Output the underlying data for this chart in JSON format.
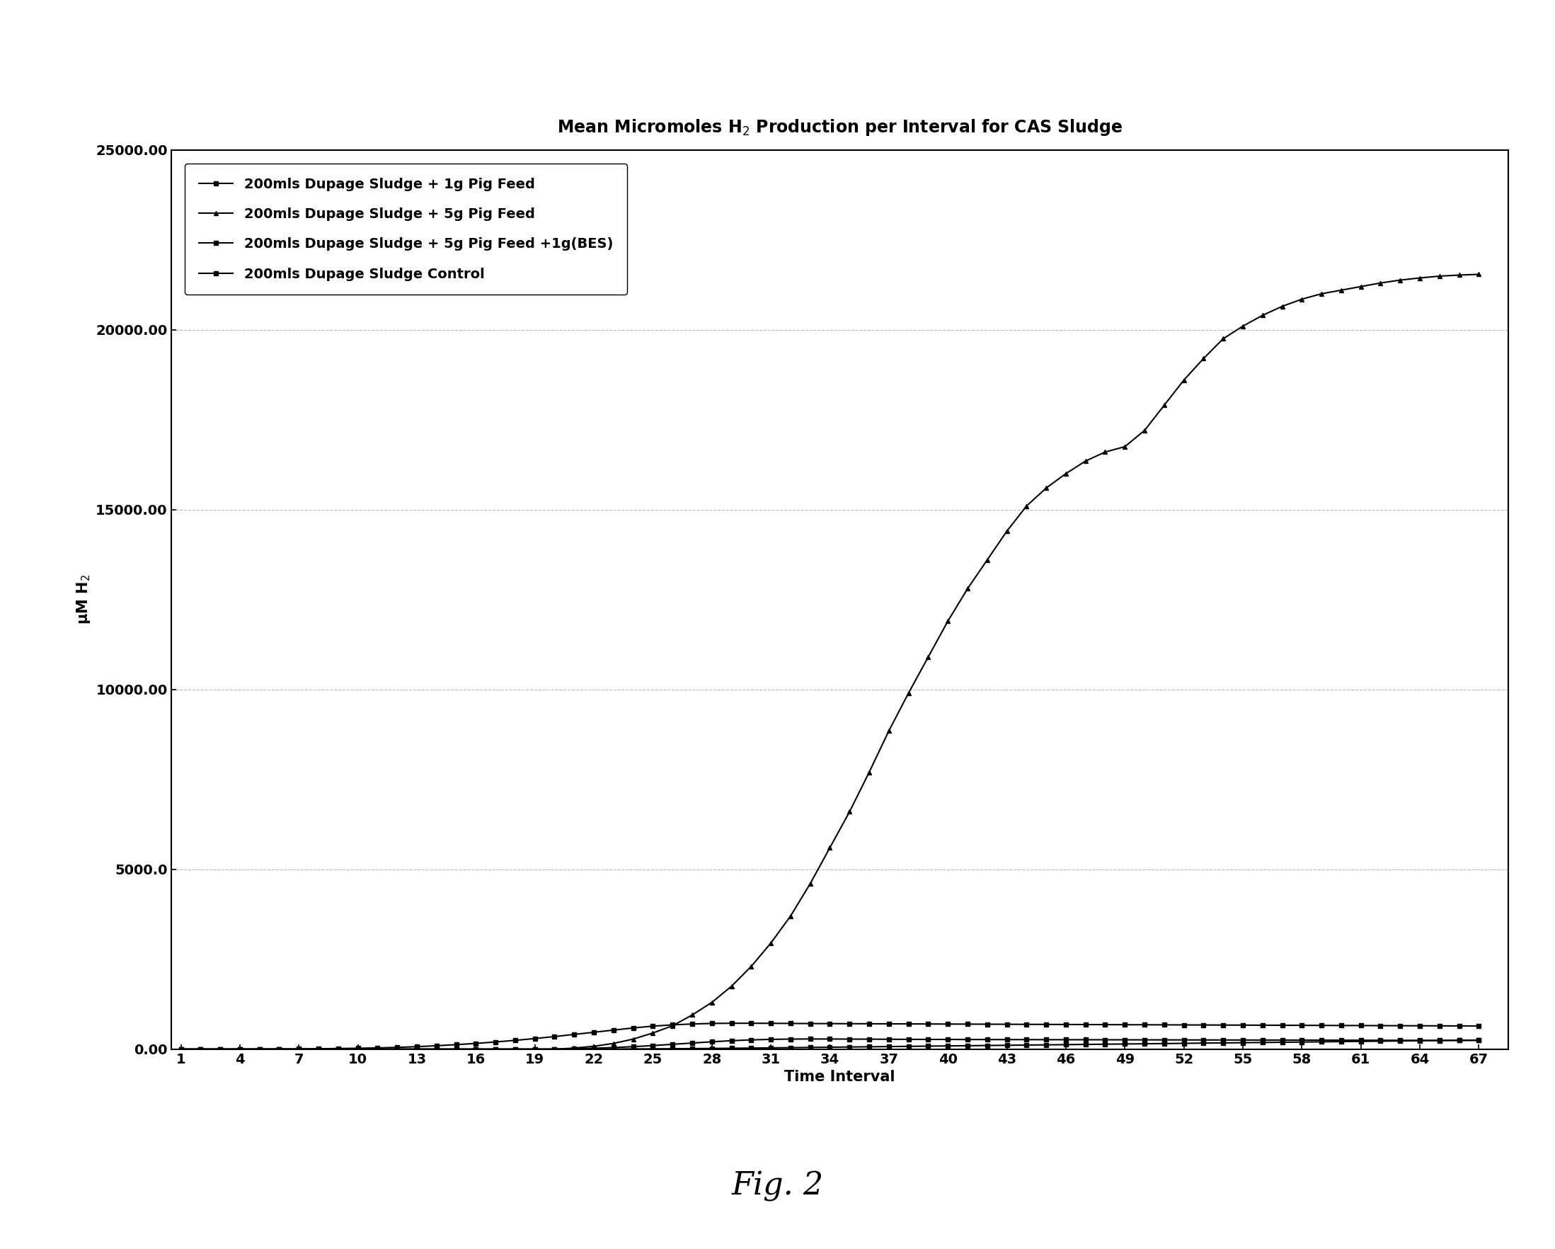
{
  "title": "Mean Micromoles H$_2$ Production per Interval for CAS Sludge",
  "xlabel": "Time Interval",
  "ylabel": "μM H$_2$",
  "figcaption": "Fig. 2",
  "ylim": [
    0,
    25000
  ],
  "xlim": [
    0.5,
    68.5
  ],
  "yticks": [
    0,
    5000,
    10000,
    15000,
    20000,
    25000
  ],
  "ytick_labels": [
    "0.00",
    "5000.0",
    "10000.00",
    "15000.00",
    "20000.00",
    "25000.00"
  ],
  "xticks": [
    1,
    4,
    7,
    10,
    13,
    16,
    19,
    22,
    25,
    28,
    31,
    34,
    37,
    40,
    43,
    46,
    49,
    52,
    55,
    58,
    61,
    64,
    67
  ],
  "series": [
    {
      "label": "200mls Dupage Sludge + 1g Pig Feed",
      "color": "#000000",
      "marker": "s",
      "markersize": 5,
      "linewidth": 1.5,
      "data_x": [
        1,
        2,
        3,
        4,
        5,
        6,
        7,
        8,
        9,
        10,
        11,
        12,
        13,
        14,
        15,
        16,
        17,
        18,
        19,
        20,
        21,
        22,
        23,
        24,
        25,
        26,
        27,
        28,
        29,
        30,
        31,
        32,
        33,
        34,
        35,
        36,
        37,
        38,
        39,
        40,
        41,
        42,
        43,
        44,
        45,
        46,
        47,
        48,
        49,
        50,
        51,
        52,
        53,
        54,
        55,
        56,
        57,
        58,
        59,
        60,
        61,
        62,
        63,
        64,
        65,
        66,
        67
      ],
      "data_y": [
        0,
        0,
        0,
        2,
        3,
        5,
        8,
        12,
        18,
        25,
        35,
        50,
        70,
        95,
        125,
        160,
        200,
        245,
        295,
        350,
        410,
        470,
        530,
        590,
        640,
        675,
        700,
        715,
        720,
        720,
        718,
        715,
        712,
        710,
        708,
        706,
        704,
        702,
        700,
        698,
        696,
        694,
        692,
        690,
        688,
        686,
        684,
        682,
        680,
        678,
        676,
        674,
        672,
        670,
        668,
        666,
        664,
        662,
        660,
        658,
        656,
        654,
        652,
        650,
        648,
        646,
        644
      ]
    },
    {
      "label": "200mls Dupage Sludge + 5g Pig Feed",
      "color": "#000000",
      "marker": "^",
      "markersize": 5,
      "linewidth": 1.5,
      "data_x": [
        1,
        2,
        3,
        4,
        5,
        6,
        7,
        8,
        9,
        10,
        11,
        12,
        13,
        14,
        15,
        16,
        17,
        18,
        19,
        20,
        21,
        22,
        23,
        24,
        25,
        26,
        27,
        28,
        29,
        30,
        31,
        32,
        33,
        34,
        35,
        36,
        37,
        38,
        39,
        40,
        41,
        42,
        43,
        44,
        45,
        46,
        47,
        48,
        49,
        50,
        51,
        52,
        53,
        54,
        55,
        56,
        57,
        58,
        59,
        60,
        61,
        62,
        63,
        64,
        65,
        66,
        67
      ],
      "data_y": [
        0,
        0,
        0,
        0,
        0,
        0,
        0,
        0,
        0,
        0,
        0,
        0,
        0,
        0,
        0,
        0,
        0,
        0,
        0,
        0,
        30,
        80,
        160,
        280,
        450,
        650,
        950,
        1300,
        1750,
        2300,
        2950,
        3700,
        4600,
        5600,
        6600,
        7700,
        8850,
        9900,
        10900,
        11900,
        12800,
        13600,
        14400,
        15100,
        15600,
        16000,
        16350,
        16600,
        16750,
        17200,
        17900,
        18600,
        19200,
        19750,
        20100,
        20400,
        20650,
        20850,
        21000,
        21100,
        21200,
        21300,
        21380,
        21440,
        21490,
        21520,
        21540
      ]
    },
    {
      "label": "200mls Dupage Sludge + 5g Pig Feed +1g(BES)",
      "color": "#000000",
      "marker": "s",
      "markersize": 5,
      "linewidth": 1.5,
      "data_x": [
        1,
        2,
        3,
        4,
        5,
        6,
        7,
        8,
        9,
        10,
        11,
        12,
        13,
        14,
        15,
        16,
        17,
        18,
        19,
        20,
        21,
        22,
        23,
        24,
        25,
        26,
        27,
        28,
        29,
        30,
        31,
        32,
        33,
        34,
        35,
        36,
        37,
        38,
        39,
        40,
        41,
        42,
        43,
        44,
        45,
        46,
        47,
        48,
        49,
        50,
        51,
        52,
        53,
        54,
        55,
        56,
        57,
        58,
        59,
        60,
        61,
        62,
        63,
        64,
        65,
        66,
        67
      ],
      "data_y": [
        0,
        0,
        0,
        0,
        0,
        0,
        0,
        0,
        0,
        0,
        0,
        0,
        0,
        0,
        0,
        0,
        0,
        0,
        0,
        0,
        10,
        25,
        45,
        70,
        100,
        135,
        170,
        205,
        235,
        258,
        272,
        280,
        283,
        282,
        280,
        278,
        275,
        273,
        271,
        270,
        268,
        267,
        266,
        265,
        264,
        263,
        262,
        261,
        260,
        259,
        258,
        257,
        256,
        255,
        254,
        253,
        252,
        251,
        250,
        249,
        248,
        247,
        246,
        245,
        244,
        243,
        242
      ]
    },
    {
      "label": "200mls Dupage Sludge Control",
      "color": "#000000",
      "marker": "s",
      "markersize": 4,
      "linewidth": 1.5,
      "data_x": [
        1,
        2,
        3,
        4,
        5,
        6,
        7,
        8,
        9,
        10,
        11,
        12,
        13,
        14,
        15,
        16,
        17,
        18,
        19,
        20,
        21,
        22,
        23,
        24,
        25,
        26,
        27,
        28,
        29,
        30,
        31,
        32,
        33,
        34,
        35,
        36,
        37,
        38,
        39,
        40,
        41,
        42,
        43,
        44,
        45,
        46,
        47,
        48,
        49,
        50,
        51,
        52,
        53,
        54,
        55,
        56,
        57,
        58,
        59,
        60,
        61,
        62,
        63,
        64,
        65,
        66,
        67
      ],
      "data_y": [
        0,
        0,
        0,
        0,
        0,
        0,
        0,
        0,
        0,
        0,
        0,
        0,
        0,
        0,
        0,
        0,
        0,
        0,
        0,
        0,
        0,
        2,
        4,
        6,
        9,
        12,
        16,
        20,
        25,
        30,
        36,
        42,
        48,
        54,
        60,
        66,
        72,
        78,
        84,
        90,
        96,
        102,
        108,
        114,
        120,
        126,
        132,
        138,
        144,
        150,
        156,
        162,
        168,
        174,
        180,
        186,
        192,
        198,
        204,
        210,
        216,
        222,
        228,
        234,
        240,
        246,
        252
      ]
    }
  ],
  "background_color": "#ffffff",
  "grid_color": "#999999",
  "legend_loc": "upper left",
  "title_fontsize": 17,
  "axis_label_fontsize": 15,
  "tick_fontsize": 14,
  "legend_fontsize": 14,
  "caption_fontsize": 32,
  "legend_labelspacing": 1.2,
  "legend_handlelength": 2.5
}
